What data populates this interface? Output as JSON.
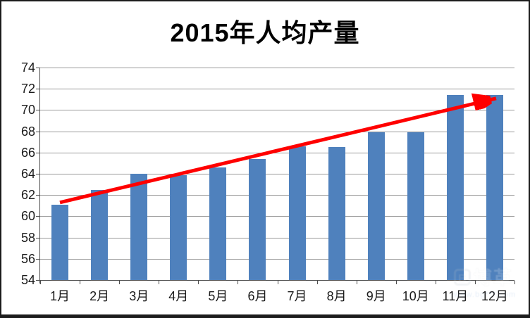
{
  "title": "2015年人均产量",
  "chart_data": {
    "type": "bar",
    "title": "2015年人均产量",
    "categories": [
      "1月",
      "2月",
      "3月",
      "4月",
      "5月",
      "6月",
      "7月",
      "8月",
      "9月",
      "10月",
      "11月",
      "12月"
    ],
    "values": [
      61.1,
      62.5,
      64.0,
      63.9,
      64.6,
      65.4,
      66.6,
      66.5,
      67.9,
      67.9,
      71.4,
      71.4
    ],
    "xlabel": "",
    "ylabel": "",
    "ylim": [
      54,
      74
    ],
    "yticks": [
      54,
      56,
      58,
      60,
      62,
      64,
      66,
      68,
      70,
      72,
      74
    ],
    "grid": "horizontal",
    "legend": "none",
    "bar_color": "#4F81BD",
    "gridline_color": "#999999",
    "axis_color": "#4d4d4d",
    "trend_arrow": {
      "color": "#FF0000",
      "from": {
        "category": "1月",
        "value": 61.3
      },
      "to": {
        "category": "12月",
        "value": 71.1
      }
    }
  },
  "watermark": {
    "logo_text": "B",
    "brand_text": "博革",
    "url_text": "www.bg***.com"
  }
}
